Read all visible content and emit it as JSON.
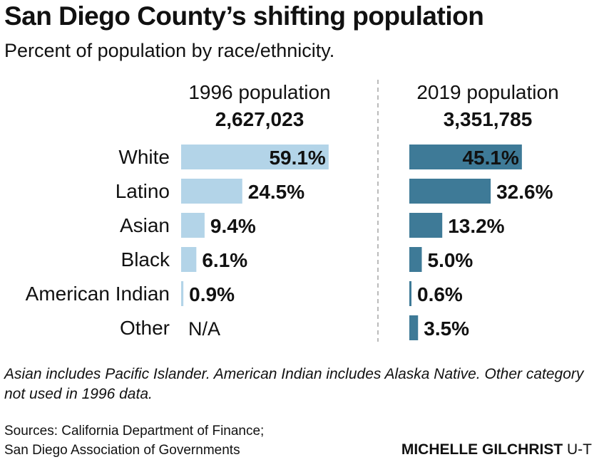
{
  "header": {
    "title": "San Diego County’s shifting population",
    "subtitle": "Percent of population by race/ethnicity."
  },
  "colors": {
    "bar_1996": "#b3d4e8",
    "bar_2019": "#3e7a97",
    "divider": "#bbbbbb"
  },
  "chart_data": {
    "type": "bar",
    "orientation": "horizontal",
    "categories": [
      "White",
      "Latino",
      "Asian",
      "Black",
      "American Indian",
      "Other"
    ],
    "series": [
      {
        "name": "1996 population",
        "total": "2,627,023",
        "values": [
          59.1,
          24.5,
          9.4,
          6.1,
          0.9,
          null
        ],
        "labels": [
          "59.1%",
          "24.5%",
          "9.4%",
          "6.1%",
          "0.9%",
          "N/A"
        ]
      },
      {
        "name": "2019 population",
        "total": "3,351,785",
        "values": [
          45.1,
          32.6,
          13.2,
          5.0,
          0.6,
          3.5
        ],
        "labels": [
          "45.1%",
          "32.6%",
          "13.2%",
          "5.0%",
          "0.6%",
          "3.5%"
        ]
      }
    ],
    "xlim": [
      0,
      60
    ],
    "unit": "%"
  },
  "footer": {
    "note": "Asian includes Pacific Islander. American Indian includes Alaska Native. Other category not used in 1996 data.",
    "sources_line1": "Sources: California Department of Finance;",
    "sources_line2": "San Diego Association of Governments",
    "credit_name": "MICHELLE GILCHRIST",
    "credit_org": "U-T"
  }
}
